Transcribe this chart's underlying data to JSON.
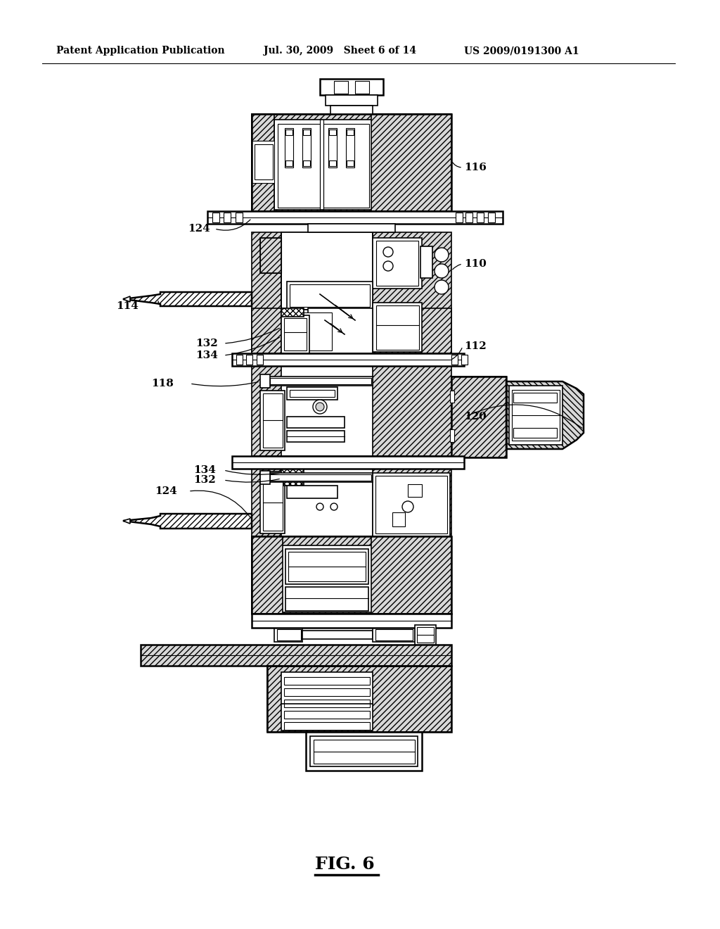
{
  "bg_color": "#ffffff",
  "header_left": "Patent Application Publication",
  "header_mid": "Jul. 30, 2009   Sheet 6 of 14",
  "header_right": "US 2009/0191300 A1",
  "caption": "FIG. 6",
  "lw_thick": 1.8,
  "lw_med": 1.2,
  "lw_thin": 0.8,
  "hatch": "////",
  "hatch_dense": "////////"
}
